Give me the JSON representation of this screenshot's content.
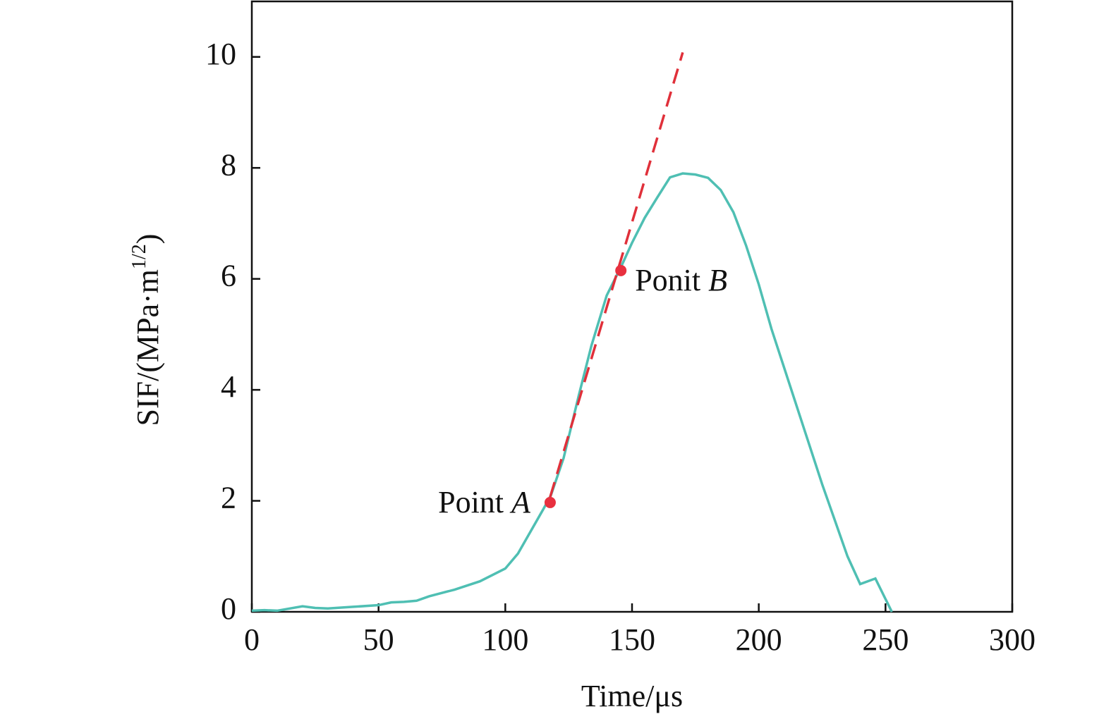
{
  "chart_data": {
    "type": "line",
    "xlabel": "Time/μs",
    "ylabel": {
      "main": "SIF/(MPa·m",
      "sup": "1/2",
      "end": ")"
    },
    "x": [
      0,
      5,
      10,
      20,
      25,
      30,
      40,
      50,
      55,
      60,
      65,
      70,
      80,
      90,
      100,
      105,
      110,
      115,
      118,
      123,
      129,
      134,
      140,
      146,
      150,
      155,
      160,
      165,
      170,
      175,
      180,
      185,
      190,
      195,
      200,
      205,
      210,
      215,
      220,
      225,
      230,
      235,
      240,
      246,
      250,
      252.5
    ],
    "series": [
      {
        "name": "SIF",
        "color": "#4fbfb3",
        "values": [
          0.02,
          0.03,
          0.02,
          0.1,
          0.07,
          0.06,
          0.09,
          0.12,
          0.17,
          0.18,
          0.2,
          0.28,
          0.4,
          0.55,
          0.78,
          1.05,
          1.45,
          1.85,
          2.1,
          2.77,
          3.9,
          4.8,
          5.7,
          6.25,
          6.65,
          7.1,
          7.47,
          7.83,
          7.9,
          7.88,
          7.82,
          7.6,
          7.2,
          6.6,
          5.9,
          5.1,
          4.4,
          3.7,
          3.0,
          2.3,
          1.65,
          1.0,
          0.5,
          0.6,
          0.23,
          0
        ]
      }
    ],
    "fit_line": {
      "color": "#e0303a",
      "x": [
        117.7,
        170
      ],
      "values": [
        2.07,
        10.08
      ]
    },
    "points": [
      {
        "text": "Point",
        "letter": "A",
        "x": 117.7,
        "y": 1.97,
        "color": "#e8303f"
      },
      {
        "text": "Ponit",
        "letter": "B",
        "x": 145.6,
        "y": 6.15,
        "color": "#e8303f"
      }
    ],
    "xlim": [
      0,
      300
    ],
    "xticks": [
      0,
      50,
      100,
      150,
      200,
      250,
      300
    ],
    "ylim": [
      0,
      11
    ],
    "yticks": [
      0,
      2,
      4,
      6,
      8,
      10
    ],
    "grid": false
  }
}
